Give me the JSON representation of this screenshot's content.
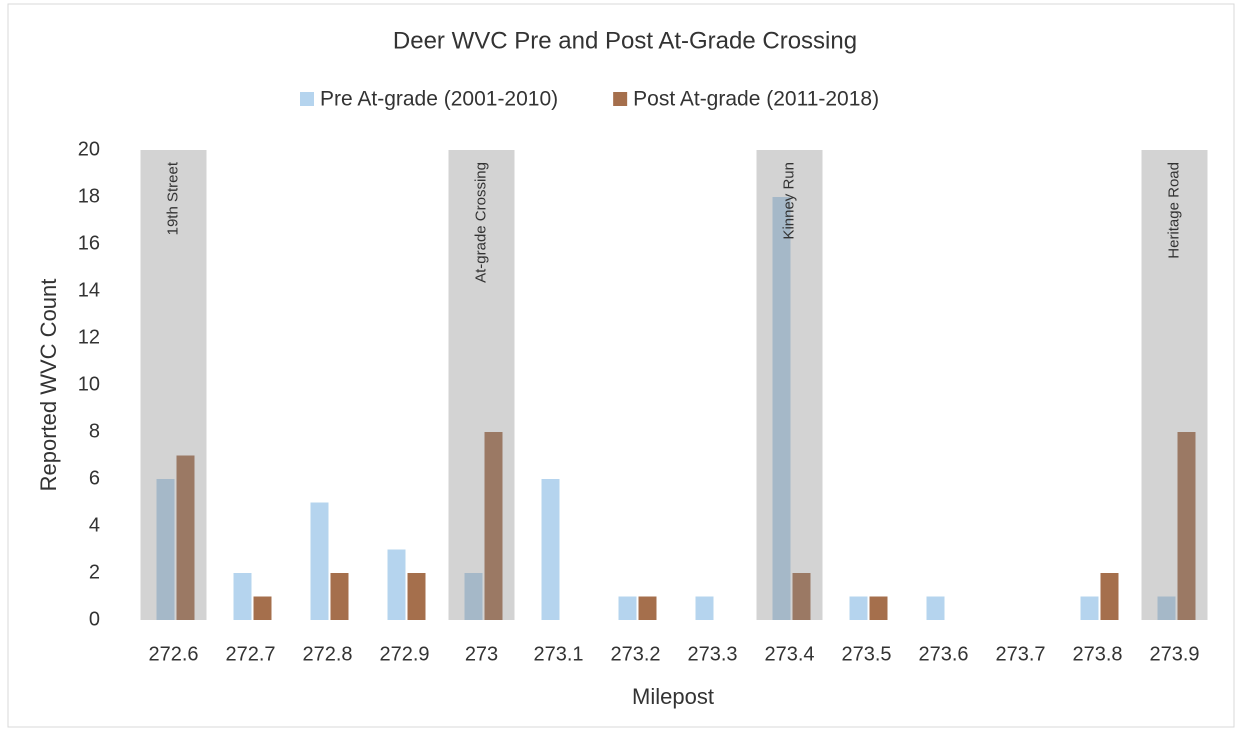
{
  "chart_data": {
    "type": "bar",
    "title": "Deer WVC Pre and Post At-Grade Crossing",
    "x_label": "Milepost",
    "y_label": "Reported WVC Count",
    "categories": [
      "272.6",
      "272.7",
      "272.8",
      "272.9",
      "273",
      "273.1",
      "273.2",
      "273.3",
      "273.4",
      "273.5",
      "273.6",
      "273.7",
      "273.8",
      "273.9"
    ],
    "series": [
      {
        "name": "Pre At-grade (2001-2010)",
        "color": "#b5d4ee",
        "values": [
          6,
          2,
          5,
          3,
          2,
          6,
          1,
          1,
          18,
          1,
          1,
          0,
          1,
          1
        ]
      },
      {
        "name": "Post At-grade (2011-2018)",
        "color": "#a56f4c",
        "values": [
          7,
          1,
          2,
          2,
          8,
          0,
          1,
          0,
          2,
          1,
          0,
          0,
          2,
          8
        ]
      }
    ],
    "ylim": [
      0,
      20
    ],
    "yticks": [
      0,
      2,
      4,
      6,
      8,
      10,
      12,
      14,
      16,
      18,
      20
    ],
    "grid": false,
    "legend": "top",
    "annotations": [
      {
        "text": "19th Street",
        "category": "272.6"
      },
      {
        "text": "At-grade Crossing",
        "category": "273"
      },
      {
        "text": "Kinney Run",
        "category": "273.4"
      },
      {
        "text": "Heritage Road",
        "category": "273.9"
      }
    ]
  }
}
